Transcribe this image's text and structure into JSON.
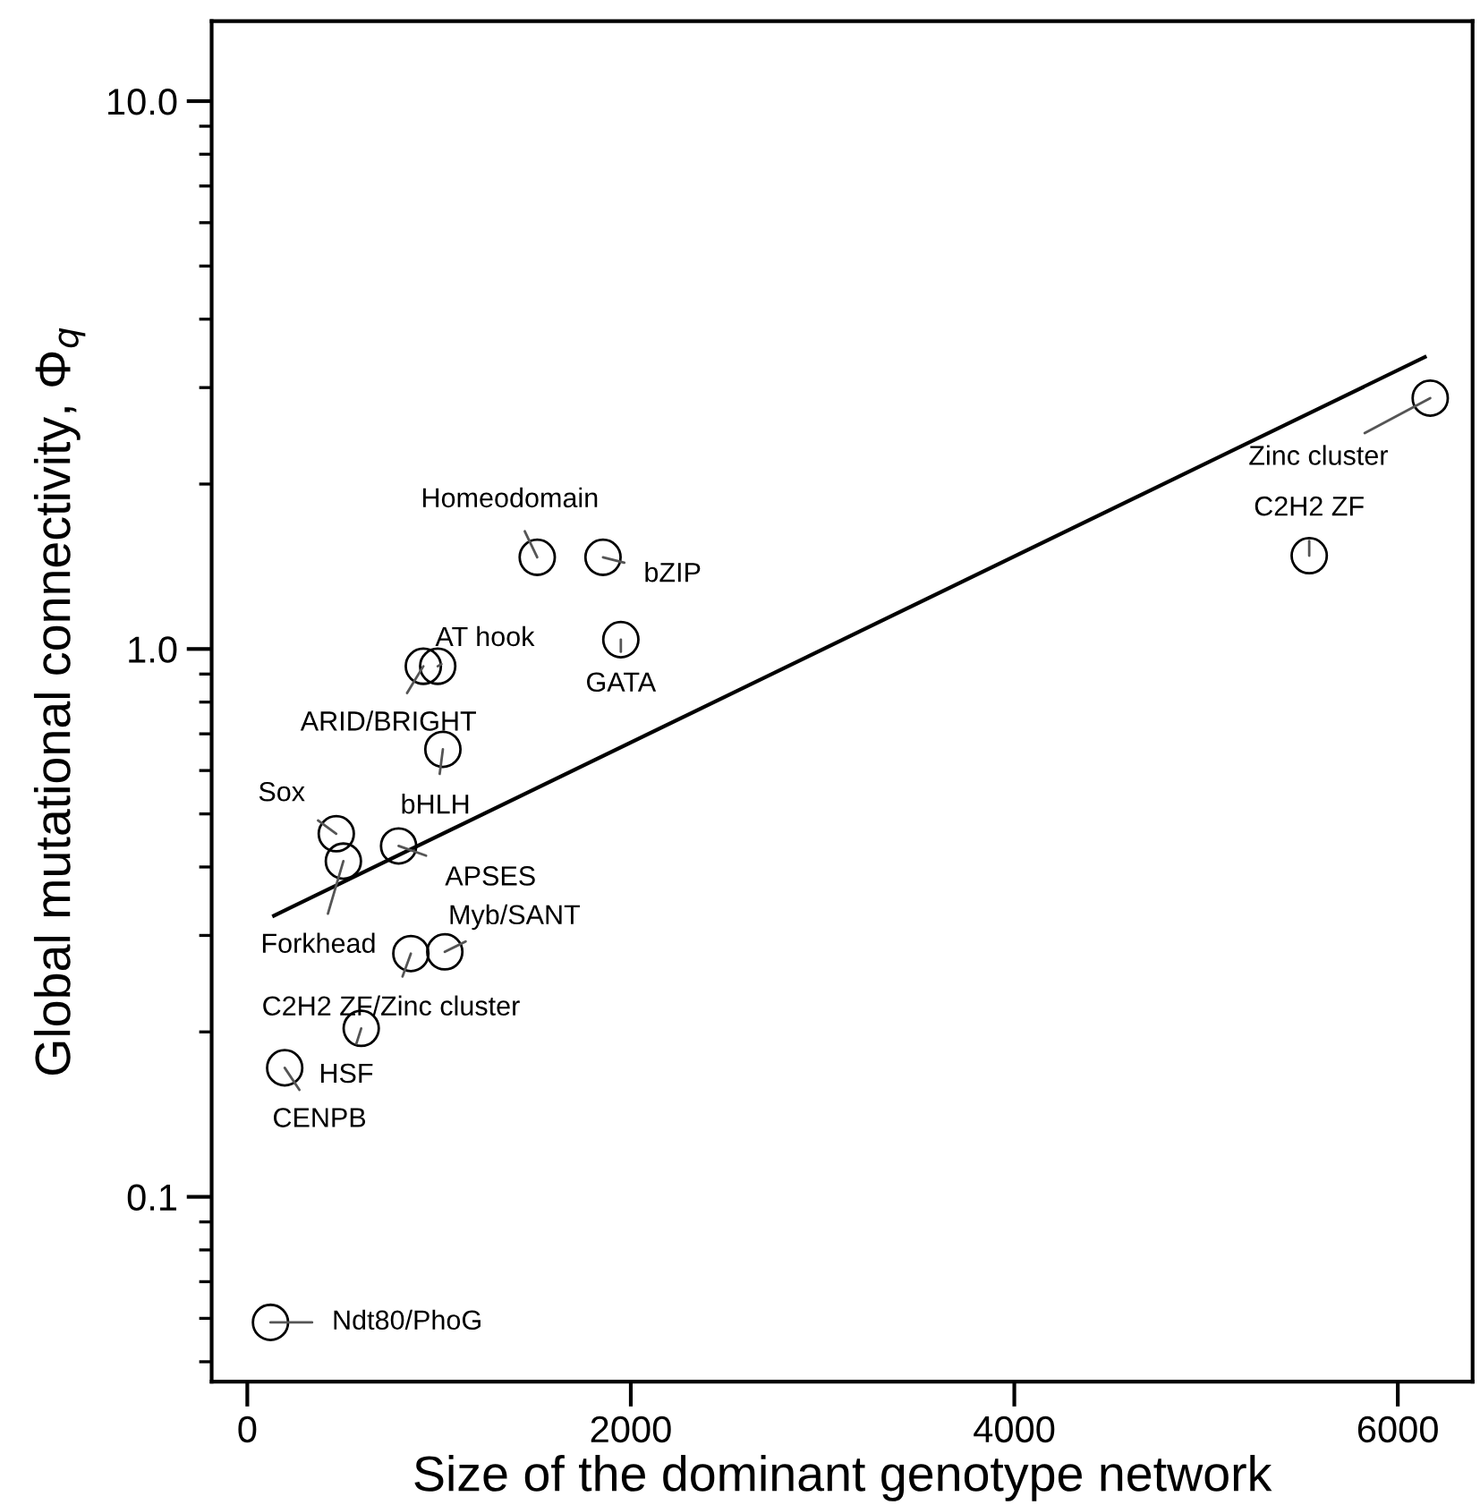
{
  "chart_data": {
    "type": "scatter",
    "xlabel": "Size of the dominant genotype network",
    "ylabel": "Global mutational connectivity, Φ$_{q}$",
    "log": "y",
    "xlim": [
      -186,
      6390
    ],
    "xticks": [
      0,
      2000,
      4000,
      6000
    ],
    "ylim": [
      0.046,
      14.0
    ],
    "yticks": [
      {
        "value": 0.1,
        "label": "0.1"
      },
      {
        "value": 1,
        "label": "1.0"
      },
      {
        "value": 10,
        "label": "10.0"
      }
    ],
    "grid": false,
    "legend": false,
    "series": [
      {
        "type": "scatter",
        "marker": "circle",
        "color": "#000000",
        "x": [
          1512,
          1855,
          1948,
          993,
          918,
          1020,
          464,
          501,
          789,
          853,
          1030,
          594,
          195,
          121,
          6169,
          5538
        ],
        "values": [
          1.47,
          1.47,
          1.04,
          0.93,
          0.93,
          0.656,
          0.46,
          0.41,
          0.437,
          0.278,
          0.28,
          0.203,
          0.172,
          0.059,
          2.87,
          1.48
        ]
      },
      {
        "type": "line",
        "line_style": "solid",
        "color": "#000000",
        "x": [
          139,
          6141
        ],
        "values": [
          0.326,
          3.41
        ]
      }
    ],
    "annotations": [
      {
        "text": "Homeodomain",
        "x": 1512,
        "y": 1.47
      },
      {
        "text": "bZIP",
        "x": 1855,
        "y": 1.47
      },
      {
        "text": "GATA",
        "x": 1948,
        "y": 1.04
      },
      {
        "text": "AT hook",
        "x": 993,
        "y": 0.93
      },
      {
        "text": "ARID/BRIGHT",
        "x": 918,
        "y": 0.93
      },
      {
        "text": "bHLH",
        "x": 1020,
        "y": 0.656
      },
      {
        "text": "Sox",
        "x": 464,
        "y": 0.46
      },
      {
        "text": "Forkhead",
        "x": 501,
        "y": 0.41
      },
      {
        "text": "APSES",
        "x": 789,
        "y": 0.437
      },
      {
        "text": "C2H2 ZF/Zinc cluster",
        "x": 853,
        "y": 0.278
      },
      {
        "text": "Myb/SANT",
        "x": 1030,
        "y": 0.28
      },
      {
        "text": "HSF",
        "x": 594,
        "y": 0.203
      },
      {
        "text": "CENPB",
        "x": 195,
        "y": 0.172
      },
      {
        "text": "Ndt80/PhoG",
        "x": 121,
        "y": 0.059
      },
      {
        "text": "Zinc cluster",
        "x": 6169,
        "y": 2.87
      },
      {
        "text": "C2H2 ZF",
        "x": 5538,
        "y": 1.48
      }
    ]
  }
}
